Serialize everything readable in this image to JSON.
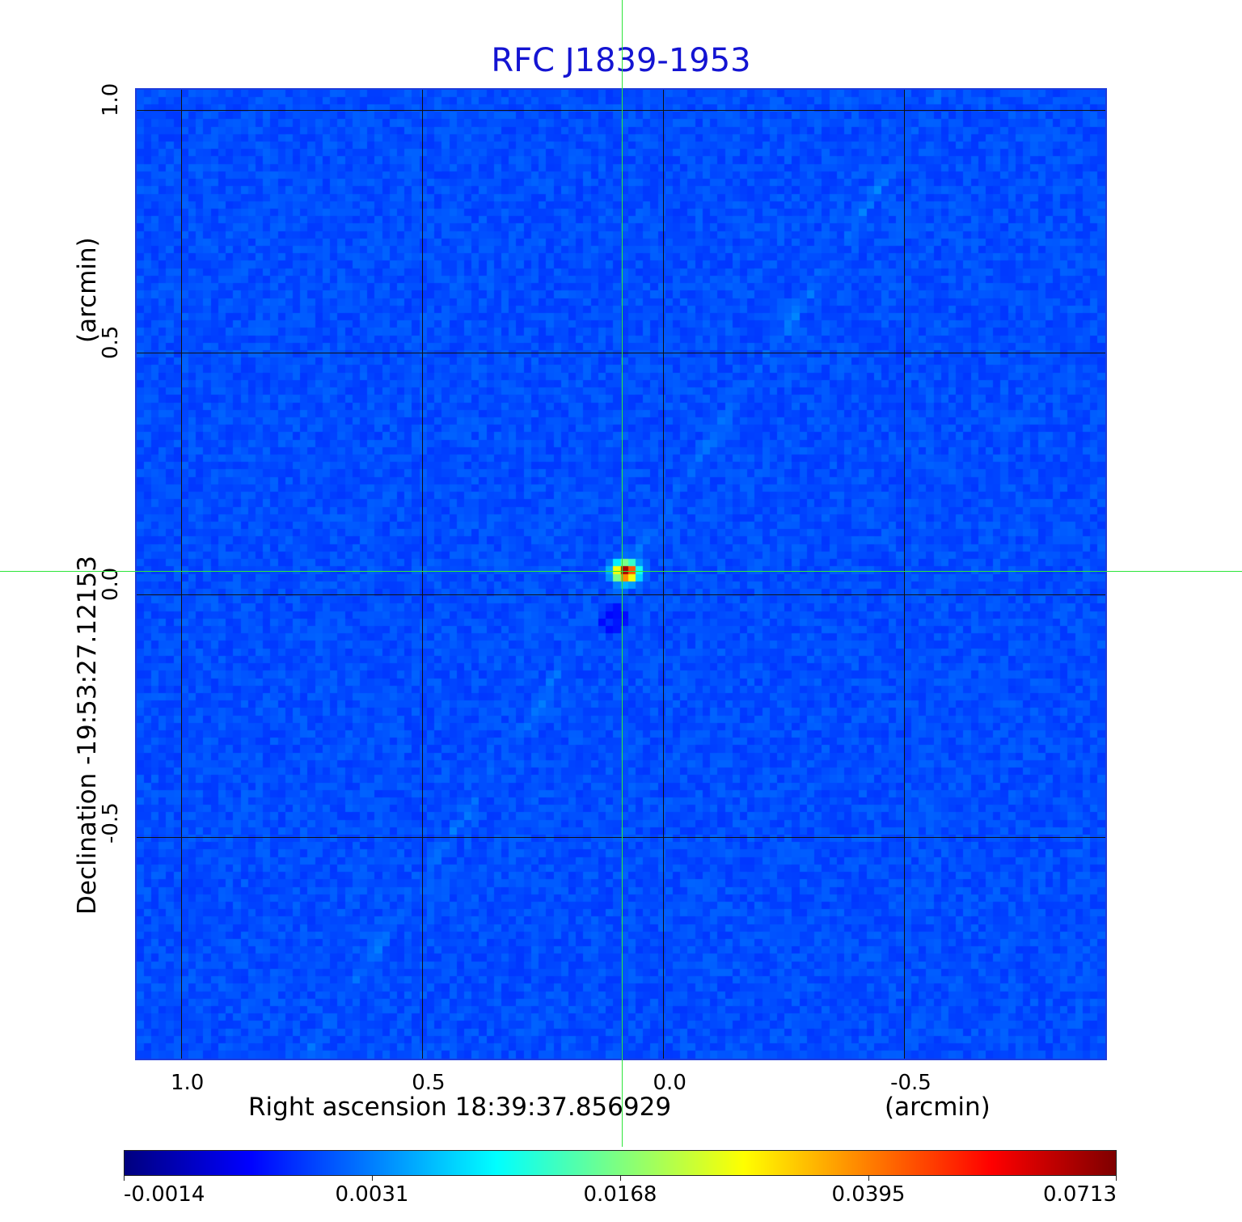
{
  "chart_data": {
    "type": "heatmap",
    "title": "RFC J1839-1953",
    "xlabel": "Right ascension  18:39:37.856929",
    "xunit": "(arcmin)",
    "ylabel": "Declination  -19:53:27.12153",
    "yunit": "(arcmin)",
    "x_ticks": [
      "1.0",
      "0.5",
      "0.0",
      "-0.5"
    ],
    "y_ticks": [
      "1.0",
      "0.5",
      "0.0",
      "-0.5"
    ],
    "x_tick_values": [
      1.0,
      0.5,
      0.0,
      -0.5
    ],
    "y_tick_values": [
      1.0,
      0.5,
      0.0,
      -0.5
    ],
    "xlim": [
      1.095,
      -0.92
    ],
    "ylim": [
      -0.96,
      1.045
    ],
    "grid": true,
    "colormap": "jet",
    "colorbar_ticks": [
      "-0.0014",
      "0.0031",
      "0.0168",
      "0.0395",
      "0.0713"
    ],
    "value_range": [
      -0.0014,
      0.0713
    ],
    "background_level": -0.0005,
    "peak": {
      "ra_offset_arcmin": 0.08,
      "dec_offset_arcmin": 0.05,
      "value": 0.0713
    },
    "crosshair": {
      "ra_offset_arcmin": 0.085,
      "dec_offset_arcmin": 0.05
    },
    "colors": {
      "title": "#1414d2",
      "crosshair": "#2ee63a",
      "grid": "#111111"
    }
  }
}
